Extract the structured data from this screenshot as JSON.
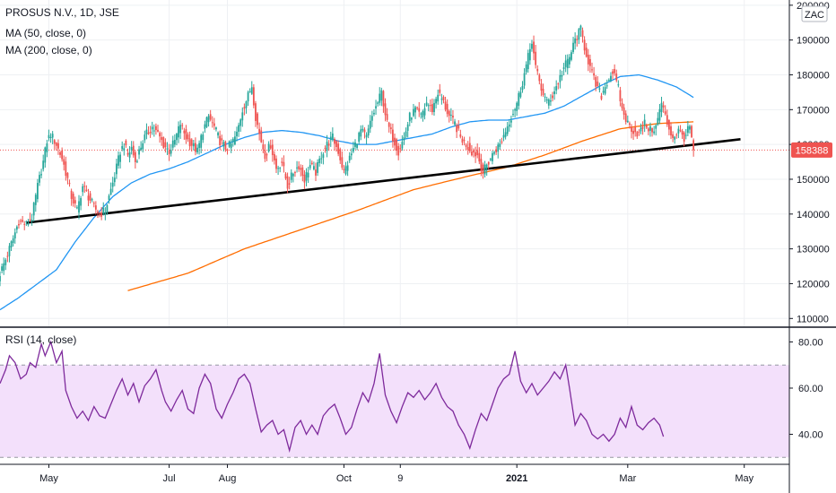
{
  "legend": {
    "title": "PROSUS N.V., 1D, JSE",
    "ma50": "MA (50, close, 0)",
    "ma200": "MA (200, close, 0)",
    "rsi": "RSI (14, close)"
  },
  "currency": "ZAC",
  "last_price_label": "158388",
  "colors": {
    "up": "#26a69a",
    "down": "#ef5350",
    "ma50": "#2196f3",
    "ma200": "#ff6d00",
    "trendline": "#000000",
    "rsi": "#7e2a9c",
    "rsi_band": "#f3e0fb",
    "grid": "#eef0f3",
    "price_label_bg": "#ef5350"
  },
  "chart_data": [
    {
      "type": "candlestick",
      "title": "PROSUS N.V., 1D, JSE",
      "x_ticks": [
        "May",
        "Jul",
        "Aug",
        "Oct",
        "9",
        "2021",
        "Mar",
        "May"
      ],
      "x_tick_days": [
        26,
        90,
        121,
        183,
        213,
        275,
        334,
        396
      ],
      "y_ticks": [
        "110000",
        "120000",
        "130000",
        "140000",
        "150000",
        "160000",
        "170000",
        "180000",
        "190000",
        "200000"
      ],
      "ylim": [
        107500,
        201500
      ],
      "xlim": [
        0,
        420
      ],
      "last_price": 158388,
      "close_anchors": [
        [
          0,
          123000
        ],
        [
          3,
          127000
        ],
        [
          7,
          133000
        ],
        [
          10,
          138000
        ],
        [
          14,
          137000
        ],
        [
          17,
          139000
        ],
        [
          20,
          148000
        ],
        [
          23,
          155000
        ],
        [
          25,
          161000
        ],
        [
          27,
          163000
        ],
        [
          30,
          160000
        ],
        [
          33,
          156000
        ],
        [
          36,
          150000
        ],
        [
          38,
          145000
        ],
        [
          41,
          141000
        ],
        [
          44,
          148000
        ],
        [
          47,
          145000
        ],
        [
          50,
          142000
        ],
        [
          53,
          140000
        ],
        [
          56,
          141000
        ],
        [
          58,
          145000
        ],
        [
          61,
          151000
        ],
        [
          64,
          158000
        ],
        [
          66,
          160000
        ],
        [
          68,
          157000
        ],
        [
          70,
          159000
        ],
        [
          72,
          155000
        ],
        [
          74,
          158000
        ],
        [
          76,
          161000
        ],
        [
          78,
          163000
        ],
        [
          81,
          165000
        ],
        [
          84,
          163000
        ],
        [
          87,
          160000
        ],
        [
          90,
          158000
        ],
        [
          93,
          161000
        ],
        [
          96,
          166000
        ],
        [
          99,
          162000
        ],
        [
          102,
          160000
        ],
        [
          105,
          158000
        ],
        [
          108,
          164000
        ],
        [
          111,
          168000
        ],
        [
          114,
          165000
        ],
        [
          117,
          161000
        ],
        [
          120,
          159000
        ],
        [
          123,
          160000
        ],
        [
          126,
          163000
        ],
        [
          129,
          170000
        ],
        [
          132,
          174000
        ],
        [
          134,
          177000
        ],
        [
          136,
          168000
        ],
        [
          138,
          163000
        ],
        [
          141,
          157000
        ],
        [
          144,
          160000
        ],
        [
          147,
          153000
        ],
        [
          150,
          155000
        ],
        [
          153,
          148000
        ],
        [
          156,
          152000
        ],
        [
          159,
          154000
        ],
        [
          162,
          150000
        ],
        [
          165,
          154000
        ],
        [
          168,
          152000
        ],
        [
          171,
          157000
        ],
        [
          174,
          160000
        ],
        [
          177,
          162000
        ],
        [
          180,
          158000
        ],
        [
          183,
          152000
        ],
        [
          186,
          156000
        ],
        [
          189,
          160000
        ],
        [
          192,
          164000
        ],
        [
          195,
          162000
        ],
        [
          198,
          168000
        ],
        [
          201,
          172000
        ],
        [
          203,
          175000
        ],
        [
          206,
          166000
        ],
        [
          209,
          162000
        ],
        [
          212,
          158000
        ],
        [
          215,
          162000
        ],
        [
          218,
          168000
        ],
        [
          221,
          170000
        ],
        [
          224,
          168000
        ],
        [
          227,
          172000
        ],
        [
          230,
          170000
        ],
        [
          233,
          175000
        ],
        [
          236,
          172000
        ],
        [
          239,
          168000
        ],
        [
          242,
          166000
        ],
        [
          245,
          162000
        ],
        [
          248,
          160000
        ],
        [
          251,
          158000
        ],
        [
          254,
          157000
        ],
        [
          257,
          152000
        ],
        [
          260,
          155000
        ],
        [
          263,
          158000
        ],
        [
          266,
          160000
        ],
        [
          269,
          164000
        ],
        [
          272,
          168000
        ],
        [
          275,
          172000
        ],
        [
          278,
          178000
        ],
        [
          281,
          185000
        ],
        [
          283,
          190000
        ],
        [
          285,
          182000
        ],
        [
          288,
          176000
        ],
        [
          291,
          172000
        ],
        [
          294,
          174000
        ],
        [
          297,
          178000
        ],
        [
          300,
          182000
        ],
        [
          303,
          185000
        ],
        [
          306,
          190000
        ],
        [
          309,
          193000
        ],
        [
          311,
          188000
        ],
        [
          314,
          182000
        ],
        [
          317,
          177000
        ],
        [
          320,
          174000
        ],
        [
          323,
          178000
        ],
        [
          326,
          181000
        ],
        [
          329,
          176000
        ],
        [
          331,
          170000
        ],
        [
          334,
          166000
        ],
        [
          337,
          164000
        ],
        [
          340,
          163000
        ],
        [
          343,
          166000
        ],
        [
          346,
          164000
        ],
        [
          349,
          165000
        ],
        [
          352,
          172000
        ],
        [
          355,
          166000
        ],
        [
          358,
          162000
        ],
        [
          361,
          164000
        ],
        [
          364,
          162000
        ],
        [
          367,
          165000
        ],
        [
          369,
          158388
        ]
      ],
      "ma50_points": [
        [
          0,
          112500
        ],
        [
          10,
          116000
        ],
        [
          20,
          120000
        ],
        [
          30,
          124000
        ],
        [
          40,
          132000
        ],
        [
          50,
          139000
        ],
        [
          60,
          145000
        ],
        [
          70,
          149000
        ],
        [
          80,
          151500
        ],
        [
          90,
          153000
        ],
        [
          100,
          155000
        ],
        [
          110,
          157500
        ],
        [
          120,
          160000
        ],
        [
          130,
          162000
        ],
        [
          140,
          163500
        ],
        [
          150,
          164000
        ],
        [
          160,
          163500
        ],
        [
          170,
          162500
        ],
        [
          180,
          161000
        ],
        [
          190,
          160000
        ],
        [
          200,
          160000
        ],
        [
          210,
          161000
        ],
        [
          220,
          162000
        ],
        [
          230,
          163000
        ],
        [
          240,
          165000
        ],
        [
          250,
          166500
        ],
        [
          260,
          167000
        ],
        [
          270,
          167000
        ],
        [
          280,
          168000
        ],
        [
          290,
          169000
        ],
        [
          300,
          171000
        ],
        [
          310,
          174000
        ],
        [
          320,
          177000
        ],
        [
          330,
          179500
        ],
        [
          340,
          180000
        ],
        [
          350,
          178500
        ],
        [
          360,
          176500
        ],
        [
          369,
          173500
        ]
      ],
      "ma200_points": [
        [
          68,
          118000
        ],
        [
          100,
          123000
        ],
        [
          130,
          130000
        ],
        [
          160,
          135500
        ],
        [
          190,
          141000
        ],
        [
          220,
          147000
        ],
        [
          250,
          151000
        ],
        [
          270,
          153500
        ],
        [
          290,
          157000
        ],
        [
          310,
          161000
        ],
        [
          330,
          164500
        ],
        [
          350,
          166000
        ],
        [
          369,
          166500
        ]
      ],
      "trendline": {
        "start": [
          14,
          137500
        ],
        "end": [
          394,
          161500
        ]
      }
    },
    {
      "type": "line",
      "title": "RSI (14, close)",
      "y_ticks": [
        "40.00",
        "60.00",
        "80.00"
      ],
      "ylim": [
        27,
        86
      ],
      "band": [
        30,
        70
      ],
      "last_value": 39,
      "anchors": [
        [
          0,
          62
        ],
        [
          3,
          68
        ],
        [
          5,
          74
        ],
        [
          8,
          71
        ],
        [
          11,
          64
        ],
        [
          14,
          66
        ],
        [
          16,
          71
        ],
        [
          19,
          69
        ],
        [
          22,
          79
        ],
        [
          24,
          74
        ],
        [
          27,
          80
        ],
        [
          30,
          71
        ],
        [
          33,
          76
        ],
        [
          35,
          59
        ],
        [
          38,
          52
        ],
        [
          41,
          47
        ],
        [
          44,
          50
        ],
        [
          47,
          46
        ],
        [
          50,
          52
        ],
        [
          53,
          48
        ],
        [
          56,
          47
        ],
        [
          59,
          53
        ],
        [
          62,
          59
        ],
        [
          65,
          64
        ],
        [
          68,
          57
        ],
        [
          71,
          62
        ],
        [
          74,
          54
        ],
        [
          77,
          61
        ],
        [
          80,
          64
        ],
        [
          83,
          68
        ],
        [
          86,
          59
        ],
        [
          88,
          54
        ],
        [
          91,
          50
        ],
        [
          94,
          55
        ],
        [
          97,
          59
        ],
        [
          100,
          51
        ],
        [
          103,
          49
        ],
        [
          106,
          60
        ],
        [
          109,
          66
        ],
        [
          112,
          62
        ],
        [
          115,
          51
        ],
        [
          118,
          47
        ],
        [
          121,
          53
        ],
        [
          124,
          58
        ],
        [
          127,
          64
        ],
        [
          130,
          66
        ],
        [
          133,
          62
        ],
        [
          136,
          51
        ],
        [
          139,
          41
        ],
        [
          142,
          44
        ],
        [
          145,
          46
        ],
        [
          148,
          40
        ],
        [
          151,
          42
        ],
        [
          154,
          33
        ],
        [
          157,
          43
        ],
        [
          160,
          46
        ],
        [
          163,
          40
        ],
        [
          166,
          44
        ],
        [
          169,
          40
        ],
        [
          172,
          48
        ],
        [
          175,
          51
        ],
        [
          178,
          53
        ],
        [
          181,
          47
        ],
        [
          184,
          40
        ],
        [
          187,
          43
        ],
        [
          190,
          51
        ],
        [
          193,
          58
        ],
        [
          196,
          54
        ],
        [
          199,
          62
        ],
        [
          202,
          75
        ],
        [
          205,
          57
        ],
        [
          208,
          50
        ],
        [
          211,
          45
        ],
        [
          214,
          52
        ],
        [
          217,
          58
        ],
        [
          220,
          56
        ],
        [
          223,
          59
        ],
        [
          226,
          55
        ],
        [
          229,
          58
        ],
        [
          232,
          62
        ],
        [
          235,
          56
        ],
        [
          238,
          52
        ],
        [
          241,
          50
        ],
        [
          244,
          44
        ],
        [
          247,
          40
        ],
        [
          250,
          34
        ],
        [
          253,
          42
        ],
        [
          256,
          49
        ],
        [
          259,
          46
        ],
        [
          262,
          53
        ],
        [
          265,
          60
        ],
        [
          268,
          64
        ],
        [
          271,
          66
        ],
        [
          274,
          76
        ],
        [
          277,
          63
        ],
        [
          280,
          58
        ],
        [
          283,
          62
        ],
        [
          286,
          57
        ],
        [
          289,
          60
        ],
        [
          292,
          63
        ],
        [
          295,
          67
        ],
        [
          298,
          64
        ],
        [
          301,
          70
        ],
        [
          303,
          60
        ],
        [
          306,
          44
        ],
        [
          309,
          49
        ],
        [
          312,
          46
        ],
        [
          315,
          40
        ],
        [
          318,
          38
        ],
        [
          321,
          40
        ],
        [
          324,
          37
        ],
        [
          327,
          40
        ],
        [
          330,
          47
        ],
        [
          333,
          43
        ],
        [
          336,
          52
        ],
        [
          339,
          44
        ],
        [
          342,
          42
        ],
        [
          345,
          45
        ],
        [
          348,
          47
        ],
        [
          351,
          44
        ],
        [
          353,
          39
        ]
      ]
    }
  ]
}
